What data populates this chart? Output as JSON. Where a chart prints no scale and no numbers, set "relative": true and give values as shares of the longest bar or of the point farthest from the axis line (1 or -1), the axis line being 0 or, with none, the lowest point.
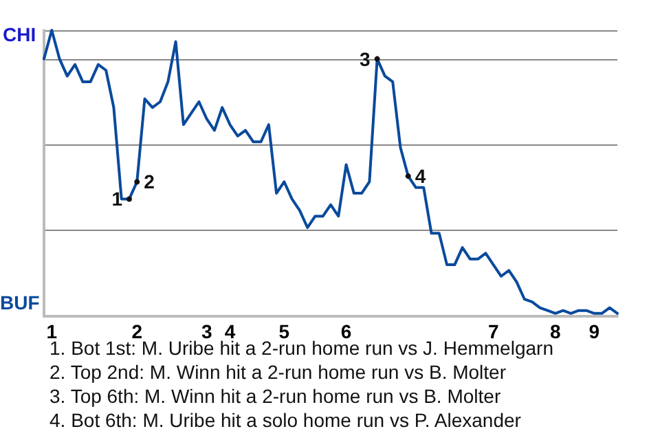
{
  "chart_data": {
    "type": "line",
    "relative": true,
    "categories": [
      null,
      "1",
      null,
      null,
      null,
      null,
      null,
      null,
      null,
      null,
      null,
      null,
      "2",
      null,
      null,
      null,
      null,
      null,
      null,
      null,
      null,
      "3",
      null,
      null,
      "4",
      null,
      null,
      null,
      null,
      null,
      null,
      "5",
      null,
      null,
      null,
      null,
      null,
      null,
      null,
      "6",
      null,
      null,
      null,
      null,
      null,
      null,
      null,
      null,
      null,
      null,
      null,
      null,
      null,
      null,
      null,
      null,
      null,
      null,
      "7",
      null,
      null,
      null,
      null,
      null,
      null,
      null,
      "8",
      null,
      null,
      null,
      null,
      "9",
      null,
      null,
      null
    ],
    "grid": true,
    "marker": "none",
    "line_style": "solid",
    "series": [
      {
        "color": "#0a4a9c",
        "values": [
          0.9,
          1,
          0.9,
          0.84,
          0.88,
          0.82,
          0.82,
          0.88,
          0.86,
          0.73,
          0.41,
          0.41,
          0.47,
          0.76,
          0.73,
          0.75,
          0.82,
          0.96,
          0.67,
          0.71,
          0.75,
          0.69,
          0.65,
          0.73,
          0.67,
          0.63,
          0.65,
          0.61,
          0.61,
          0.67,
          0.43,
          0.47,
          0.41,
          0.37,
          0.31,
          0.35,
          0.35,
          0.39,
          0.35,
          0.53,
          0.43,
          0.43,
          0.47,
          0.9,
          0.84,
          0.82,
          0.59,
          0.49,
          0.45,
          0.45,
          0.29,
          0.29,
          0.18,
          0.18,
          0.24,
          0.2,
          0.2,
          0.22,
          0.18,
          0.14,
          0.16,
          0.12,
          0.06,
          0.05,
          0.03,
          0.02,
          0.01,
          0.02,
          0.01,
          0.02,
          0.02,
          0.01,
          0.01,
          0.03,
          0.01
        ],
        "name": null
      },
      {
        "name": "1",
        "color": "#111111",
        "marker": "circle",
        "values": [
          null,
          null,
          null,
          null,
          null,
          null,
          null,
          null,
          null,
          null,
          null,
          0.41,
          null,
          null,
          null,
          null,
          null,
          null,
          null,
          null,
          null,
          null,
          null,
          null,
          null,
          null,
          null,
          null,
          null,
          null,
          null,
          null,
          null,
          null,
          null,
          null,
          null,
          null,
          null,
          null,
          null,
          null,
          null,
          null,
          null,
          null,
          null,
          null,
          null,
          null,
          null,
          null,
          null,
          null,
          null,
          null,
          null,
          null,
          null,
          null,
          null,
          null,
          null,
          null,
          null,
          null,
          null,
          null,
          null,
          null,
          null,
          null,
          null,
          null,
          null
        ]
      },
      {
        "name": "2",
        "color": "#111111",
        "marker": "circle",
        "values": [
          null,
          null,
          null,
          null,
          null,
          null,
          null,
          null,
          null,
          null,
          null,
          null,
          0.47,
          null,
          null,
          null,
          null,
          null,
          null,
          null,
          null,
          null,
          null,
          null,
          null,
          null,
          null,
          null,
          null,
          null,
          null,
          null,
          null,
          null,
          null,
          null,
          null,
          null,
          null,
          null,
          null,
          null,
          null,
          null,
          null,
          null,
          null,
          null,
          null,
          null,
          null,
          null,
          null,
          null,
          null,
          null,
          null,
          null,
          null,
          null,
          null,
          null,
          null,
          null,
          null,
          null,
          null,
          null,
          null,
          null,
          null,
          null,
          null,
          null,
          null
        ]
      },
      {
        "name": "3",
        "color": "#111111",
        "marker": "circle",
        "values": [
          null,
          null,
          null,
          null,
          null,
          null,
          null,
          null,
          null,
          null,
          null,
          null,
          null,
          null,
          null,
          null,
          null,
          null,
          null,
          null,
          null,
          null,
          null,
          null,
          null,
          null,
          null,
          null,
          null,
          null,
          null,
          null,
          null,
          null,
          null,
          null,
          null,
          null,
          null,
          null,
          null,
          null,
          null,
          0.9,
          null,
          null,
          null,
          null,
          null,
          null,
          null,
          null,
          null,
          null,
          null,
          null,
          null,
          null,
          null,
          null,
          null,
          null,
          null,
          null,
          null,
          null,
          null,
          null,
          null,
          null,
          null,
          null,
          null,
          null,
          null
        ]
      },
      {
        "name": "4",
        "color": "#111111",
        "marker": "circle",
        "values": [
          null,
          null,
          null,
          null,
          null,
          null,
          null,
          null,
          null,
          null,
          null,
          null,
          null,
          null,
          null,
          null,
          null,
          null,
          null,
          null,
          null,
          null,
          null,
          null,
          null,
          null,
          null,
          null,
          null,
          null,
          null,
          null,
          null,
          null,
          null,
          null,
          null,
          null,
          null,
          null,
          null,
          null,
          null,
          null,
          null,
          null,
          null,
          0.49,
          null,
          null,
          null,
          null,
          null,
          null,
          null,
          null,
          null,
          null,
          null,
          null,
          null,
          null,
          null,
          null,
          null,
          null,
          null,
          null,
          null,
          null,
          null,
          null,
          null,
          null,
          null
        ]
      }
    ],
    "annotations": [
      "CHI",
      "BUF",
      "1. Bot 1st: M. Uribe hit a 2-run home run vs J. Hemmelgarn",
      "2. Top 2nd: M. Winn hit a 2-run home run vs B. Molter",
      "3. Top 6th: M. Winn hit a 2-run home run vs B. Molter",
      "4. Bot 6th: M. Uribe hit a solo home run vs P. Alexander"
    ]
  }
}
